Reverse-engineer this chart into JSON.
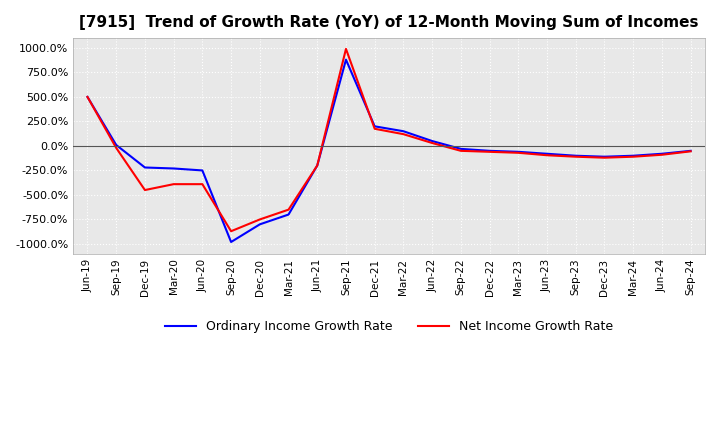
{
  "title": "[7915]  Trend of Growth Rate (YoY) of 12-Month Moving Sum of Incomes",
  "title_fontsize": 11,
  "ylim": [
    -1100,
    1100
  ],
  "yticks": [
    -1000,
    -750,
    -500,
    -250,
    0,
    250,
    500,
    750,
    1000
  ],
  "ytick_labels": [
    "-1000.0%",
    "-750.0%",
    "-500.0%",
    "-250.0%",
    "0.0%",
    "250.0%",
    "500.0%",
    "750.0%",
    "1000.0%"
  ],
  "background_color": "#ffffff",
  "plot_background_color": "#e8e8e8",
  "grid_color": "#ffffff",
  "grid_style": "dotted",
  "ordinary_color": "#0000ff",
  "net_color": "#ff0000",
  "legend_ordinary": "Ordinary Income Growth Rate",
  "legend_net": "Net Income Growth Rate",
  "dates": [
    "Jun-19",
    "Sep-19",
    "Dec-19",
    "Mar-20",
    "Jun-20",
    "Sep-20",
    "Dec-20",
    "Mar-21",
    "Jun-21",
    "Sep-21",
    "Dec-21",
    "Mar-22",
    "Jun-22",
    "Sep-22",
    "Dec-22",
    "Mar-23",
    "Jun-23",
    "Sep-23",
    "Dec-23",
    "Mar-24",
    "Jun-24",
    "Sep-24"
  ],
  "ordinary_values": [
    500,
    10,
    -220,
    -230,
    -250,
    -980,
    -800,
    -700,
    -200,
    880,
    200,
    150,
    50,
    -30,
    -50,
    -60,
    -80,
    -100,
    -110,
    -100,
    -80,
    -50
  ],
  "net_values": [
    500,
    -20,
    -450,
    -390,
    -390,
    -870,
    -750,
    -650,
    -200,
    990,
    175,
    120,
    30,
    -50,
    -60,
    -70,
    -95,
    -110,
    -120,
    -110,
    -90,
    -55
  ]
}
